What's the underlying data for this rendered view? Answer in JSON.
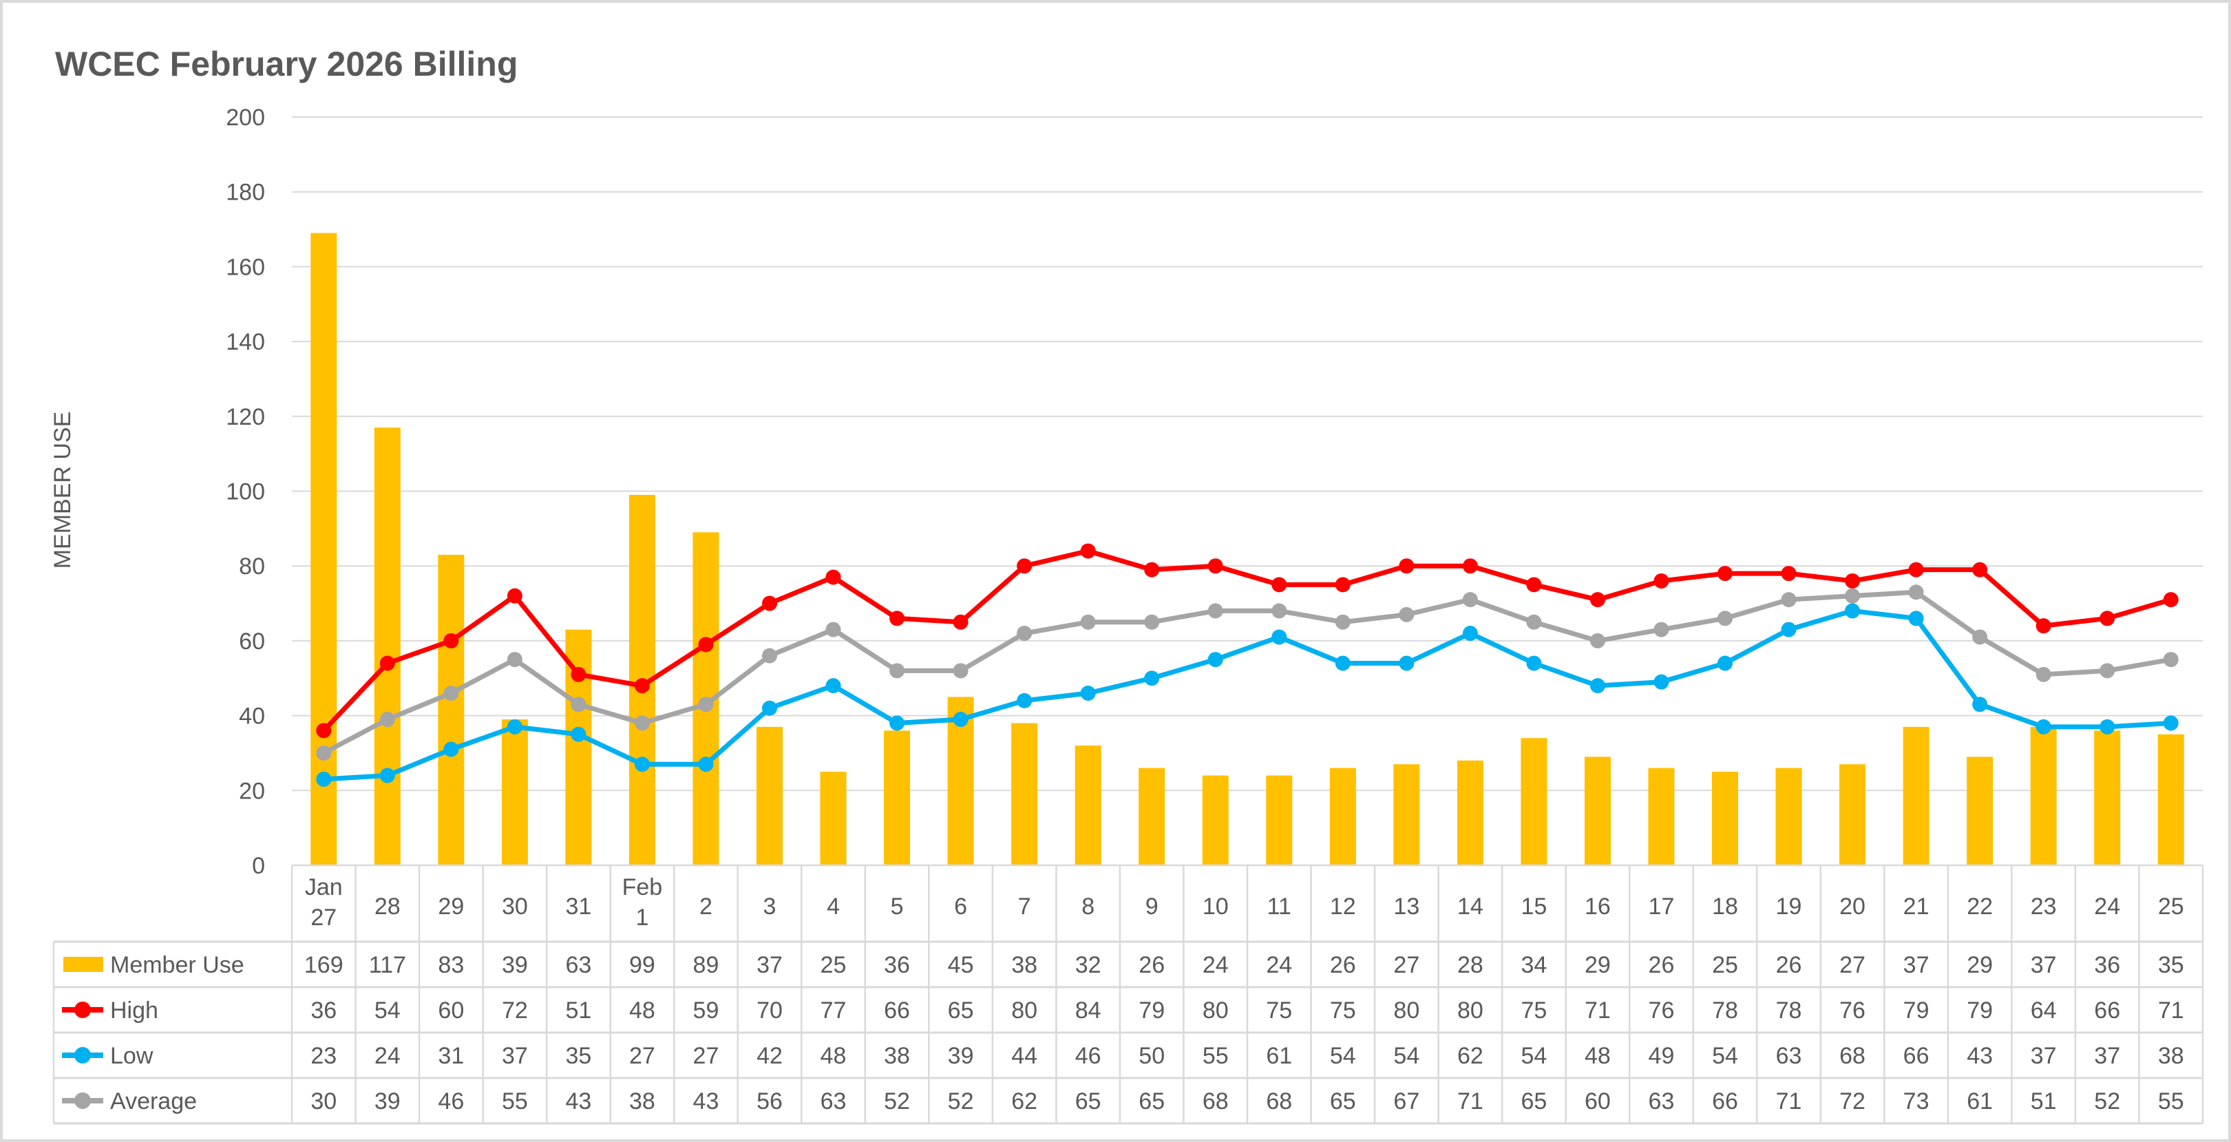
{
  "chart_data": {
    "type": "bar+line",
    "title": "WCEC February 2026 Billing",
    "ylabel": "MEMBER USE",
    "xlabel": "",
    "ylim": [
      0,
      200
    ],
    "yticks": [
      0,
      20,
      40,
      60,
      80,
      100,
      120,
      140,
      160,
      180,
      200
    ],
    "grid": true,
    "legend": "data-table",
    "categories": [
      [
        "Jan",
        "27"
      ],
      [
        "28"
      ],
      [
        "29"
      ],
      [
        "30"
      ],
      [
        "31"
      ],
      [
        "Feb",
        "1"
      ],
      [
        "2"
      ],
      [
        "3"
      ],
      [
        "4"
      ],
      [
        "5"
      ],
      [
        "6"
      ],
      [
        "7"
      ],
      [
        "8"
      ],
      [
        "9"
      ],
      [
        "10"
      ],
      [
        "11"
      ],
      [
        "12"
      ],
      [
        "13"
      ],
      [
        "14"
      ],
      [
        "15"
      ],
      [
        "16"
      ],
      [
        "17"
      ],
      [
        "18"
      ],
      [
        "19"
      ],
      [
        "20"
      ],
      [
        "21"
      ],
      [
        "22"
      ],
      [
        "23"
      ],
      [
        "24"
      ],
      [
        "25"
      ]
    ],
    "series": [
      {
        "name": "Member Use",
        "kind": "bar",
        "color": "#FFC000",
        "values": [
          169,
          117,
          83,
          39,
          63,
          99,
          89,
          37,
          25,
          36,
          45,
          38,
          32,
          26,
          24,
          24,
          26,
          27,
          28,
          34,
          29,
          26,
          25,
          26,
          27,
          37,
          29,
          37,
          36,
          35
        ]
      },
      {
        "name": "High",
        "kind": "line",
        "color": "#FF0000",
        "values": [
          36,
          54,
          60,
          72,
          51,
          48,
          59,
          70,
          77,
          66,
          65,
          80,
          84,
          79,
          80,
          75,
          75,
          80,
          80,
          75,
          71,
          76,
          78,
          78,
          76,
          79,
          79,
          64,
          66,
          71
        ]
      },
      {
        "name": "Low",
        "kind": "line",
        "color": "#00B0F0",
        "values": [
          23,
          24,
          31,
          37,
          35,
          27,
          27,
          42,
          48,
          38,
          39,
          44,
          46,
          50,
          55,
          61,
          54,
          54,
          62,
          54,
          48,
          49,
          54,
          63,
          68,
          66,
          43,
          37,
          37,
          38
        ]
      },
      {
        "name": "Average",
        "kind": "line",
        "color": "#A5A5A5",
        "values": [
          30,
          39,
          46,
          55,
          43,
          38,
          43,
          56,
          63,
          52,
          52,
          62,
          65,
          65,
          68,
          68,
          65,
          67,
          71,
          65,
          60,
          63,
          66,
          71,
          72,
          73,
          61,
          51,
          52,
          55
        ]
      }
    ]
  }
}
